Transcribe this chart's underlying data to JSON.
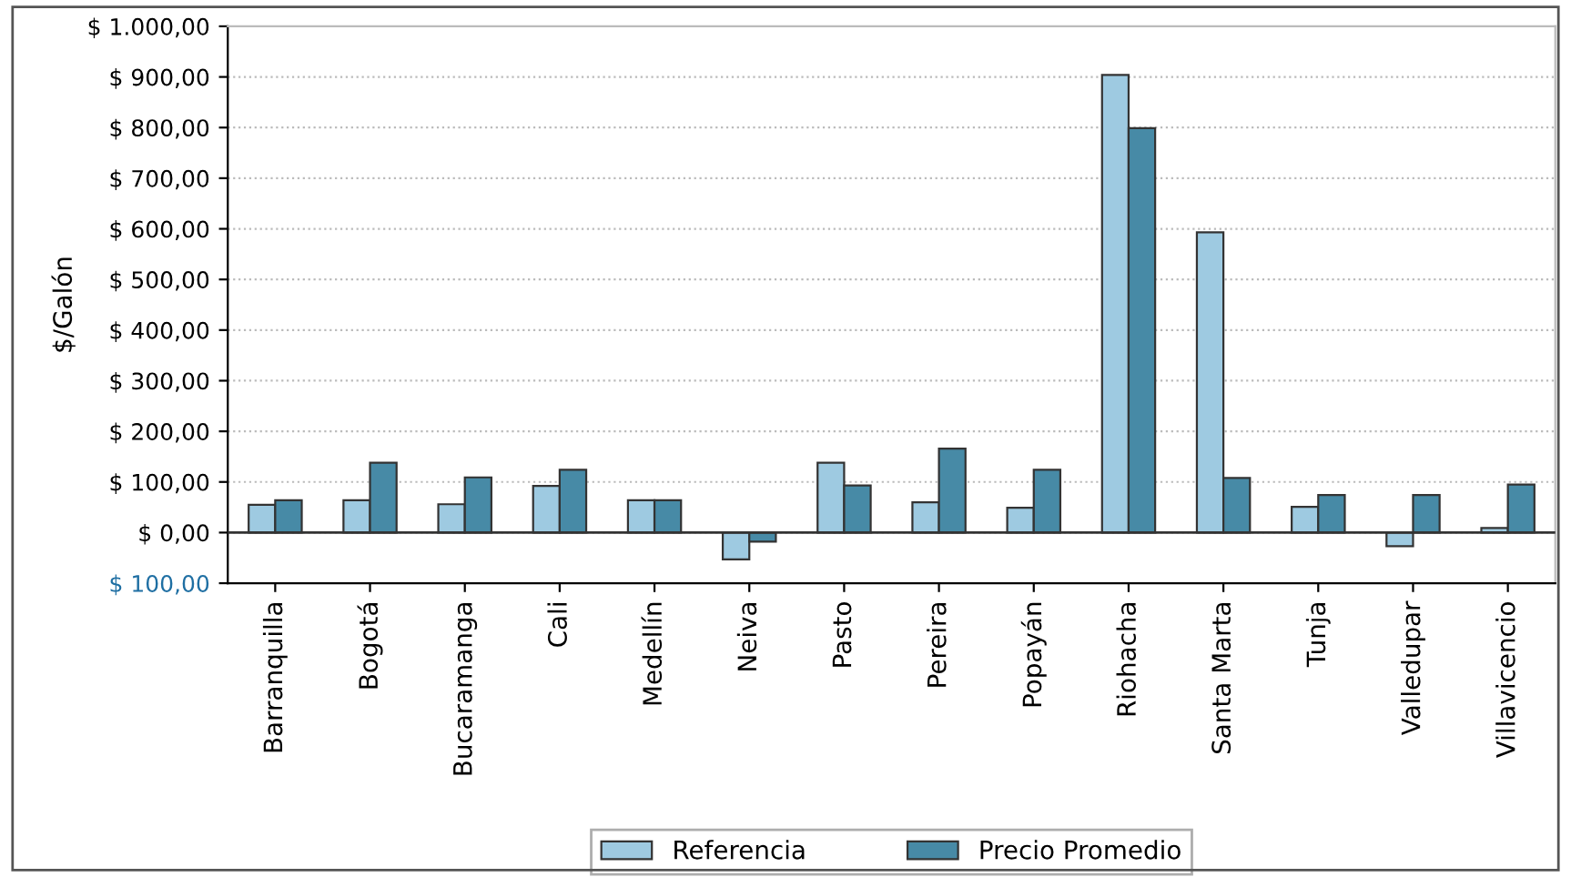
{
  "chart_data": {
    "type": "bar",
    "ylabel": "$/Galón",
    "categories": [
      "Barranquilla",
      "Bogotá",
      "Bucaramanga",
      "Cali",
      "Medellín",
      "Neiva",
      "Pasto",
      "Pereira",
      "Popayán",
      "Riohacha",
      "Santa Marta",
      "Tunja",
      "Valledupar",
      "Villavicencio"
    ],
    "series": [
      {
        "name": "Referencia",
        "color": "#9ecae1",
        "values": [
          55,
          64,
          56,
          92,
          64,
          -53,
          138,
          60,
          49,
          904,
          593,
          51,
          -27,
          9
        ]
      },
      {
        "name": "Precio Promedio",
        "color": "#478aa6",
        "values": [
          64,
          138,
          109,
          124,
          64,
          -18,
          93,
          166,
          124,
          799,
          108,
          74,
          74,
          95
        ]
      }
    ],
    "ylim": [
      -100,
      1000
    ],
    "yticks": [
      {
        "value": -100,
        "label": "$ 100,00"
      },
      {
        "value": 0,
        "label": "$ 0,00"
      },
      {
        "value": 100,
        "label": "$ 100,00"
      },
      {
        "value": 200,
        "label": "$ 200,00"
      },
      {
        "value": 300,
        "label": "$ 300,00"
      },
      {
        "value": 400,
        "label": "$ 400,00"
      },
      {
        "value": 500,
        "label": "$ 500,00"
      },
      {
        "value": 600,
        "label": "$ 600,00"
      },
      {
        "value": 700,
        "label": "$ 700,00"
      },
      {
        "value": 800,
        "label": "$ 800,00"
      },
      {
        "value": 900,
        "label": "$ 900,00"
      },
      {
        "value": 1000,
        "label": "$ 1.000,00"
      }
    ],
    "grid": "y",
    "legend": "bottom"
  }
}
